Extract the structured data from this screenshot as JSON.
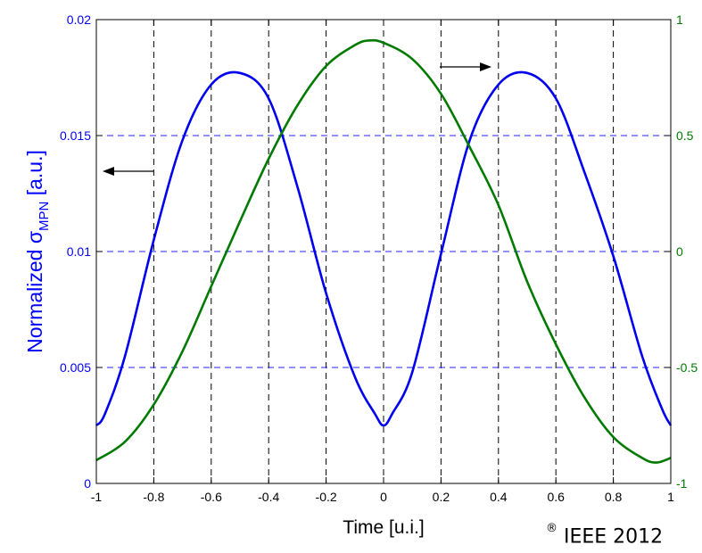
{
  "chart_data": {
    "type": "line",
    "xlabel": "Time [u.i.]",
    "ylabel_left": {
      "main": "Normalized σ",
      "sub": "MPN",
      "tail": " [a.u.]"
    },
    "xlim": [
      -1,
      1
    ],
    "ylim_left": [
      0,
      0.02
    ],
    "ylim_right": [
      -1,
      1
    ],
    "x_ticks": [
      "-1",
      "-0.8",
      "-0.6",
      "-0.4",
      "-0.2",
      "0",
      "0.2",
      "0.4",
      "0.6",
      "0.8",
      "1"
    ],
    "y_ticks_left": [
      "0",
      "0.005",
      "0.01",
      "0.015",
      "0.02"
    ],
    "y_ticks_right": [
      "-1",
      "-0.5",
      "0",
      "0.5",
      "1"
    ],
    "grid": {
      "vertical": "black dashed",
      "horizontal": "blue dashed"
    },
    "series": [
      {
        "axis": "left",
        "color": "#0000ee",
        "x": [
          -1,
          -0.97,
          -0.9,
          -0.8,
          -0.7,
          -0.6,
          -0.5,
          -0.4,
          -0.3,
          -0.2,
          -0.1,
          -0.03,
          0,
          0.03,
          0.1,
          0.2,
          0.3,
          0.4,
          0.5,
          0.6,
          0.7,
          0.8,
          0.9,
          0.97,
          1
        ],
        "y": [
          0.0025,
          0.003,
          0.0055,
          0.0105,
          0.0148,
          0.0172,
          0.0177,
          0.0166,
          0.0128,
          0.0082,
          0.0046,
          0.003,
          0.0025,
          0.003,
          0.0048,
          0.0099,
          0.0148,
          0.0172,
          0.0177,
          0.0166,
          0.0134,
          0.0098,
          0.0055,
          0.0032,
          0.0025
        ]
      },
      {
        "axis": "right",
        "color": "#007a00",
        "x": [
          -1,
          -0.9,
          -0.8,
          -0.7,
          -0.6,
          -0.5,
          -0.4,
          -0.3,
          -0.2,
          -0.1,
          -0.05,
          0,
          0.1,
          0.2,
          0.3,
          0.4,
          0.5,
          0.6,
          0.7,
          0.8,
          0.9,
          0.95,
          1
        ],
        "y": [
          -0.9,
          -0.82,
          -0.66,
          -0.43,
          -0.15,
          0.13,
          0.4,
          0.63,
          0.8,
          0.89,
          0.91,
          0.9,
          0.83,
          0.68,
          0.45,
          0.2,
          -0.13,
          -0.4,
          -0.63,
          -0.8,
          -0.89,
          -0.91,
          -0.89
        ]
      }
    ],
    "annotations": [
      {
        "type": "arrow",
        "points_to": "left axis"
      },
      {
        "type": "arrow",
        "points_to": "right axis"
      }
    ]
  },
  "copyright": {
    "symbol": "®",
    "text": "IEEE 2012"
  }
}
